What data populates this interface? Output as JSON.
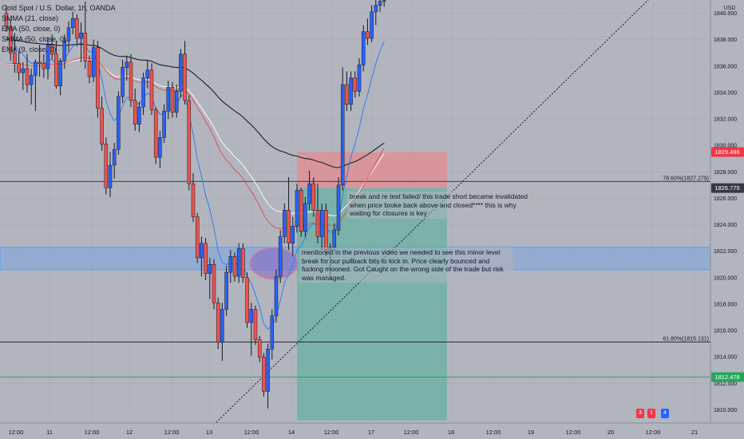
{
  "symbol": "Gold Spot / U.S. Dollar, 1h, OANDA",
  "indicators": [
    "SMMA (21, close)",
    "EMA (50, close, 0)",
    "SMMA (50, close, 0)",
    "EMA (9, close, 0)"
  ],
  "currency": "USD",
  "price_axis": {
    "ticks": [
      "1840.000",
      "1838.000",
      "1836.000",
      "1834.000",
      "1832.000",
      "1830.000",
      "1828.000",
      "1826.000",
      "1824.000",
      "1822.000",
      "1820.000",
      "1818.000",
      "1816.000",
      "1814.000",
      "1812.000",
      "1810.000"
    ],
    "badges": [
      {
        "label": "1829.496",
        "price": 1829.496,
        "color": "#f23645"
      },
      {
        "label": "1826.775",
        "price": 1826.775,
        "color": "#363a45"
      },
      {
        "label": "1812.478",
        "price": 1812.478,
        "color": "#26a65b"
      }
    ]
  },
  "time_axis": [
    "12:00",
    "11",
    "12:00",
    "12",
    "12:00",
    "13",
    "12:00",
    "14",
    "12:00",
    "17",
    "12:00",
    "18",
    "12:00",
    "19",
    "12:00",
    "20",
    "12:00",
    "21"
  ],
  "fib_levels": [
    {
      "label": "78.60%(1827.279)",
      "price": 1827.279
    },
    {
      "label": "61.80%(1815.131)",
      "price": 1815.131
    }
  ],
  "annotations": {
    "note1": "break and re test failed/ this trade short became invalidated when price broke back above and closed**** this is why waiting for closures is key",
    "note2": "mentioned in the previous video we needed to see this minor level break for our pullback bits to kick in. Price clearly bounced and fucking mooned. Got Caught on the wrong side of the trade but risk was managed."
  },
  "event_badges": [
    "3",
    "1",
    "4"
  ],
  "colors": {
    "bull": "#2962ff",
    "bear": "#ef5350",
    "support_zone": "#5b9cf6",
    "stop_zone": "#f77c80",
    "target_zone": "#4caf99",
    "green_line": "#26a65b"
  },
  "chart_data": {
    "type": "candlestick",
    "price_range": [
      1809,
      1841
    ],
    "candles_ohlc": [
      [
        1840.0,
        1840.6,
        1838.6,
        1839.0
      ],
      [
        1839.0,
        1839.5,
        1836.4,
        1837.0
      ],
      [
        1837.0,
        1838.5,
        1835.5,
        1836.2
      ],
      [
        1836.2,
        1837.1,
        1834.9,
        1835.5
      ],
      [
        1835.5,
        1836.3,
        1834.2,
        1835.8
      ],
      [
        1835.8,
        1836.9,
        1834.0,
        1834.6
      ],
      [
        1834.6,
        1835.8,
        1833.1,
        1835.3
      ],
      [
        1835.3,
        1836.5,
        1832.6,
        1836.3
      ],
      [
        1836.3,
        1837.6,
        1835.2,
        1836.2
      ],
      [
        1836.2,
        1836.9,
        1835.1,
        1835.8
      ],
      [
        1835.8,
        1838.2,
        1835.0,
        1837.6
      ],
      [
        1837.6,
        1838.4,
        1836.5,
        1836.9
      ],
      [
        1836.9,
        1837.9,
        1834.3,
        1834.5
      ],
      [
        1834.5,
        1836.6,
        1833.8,
        1836.4
      ],
      [
        1836.4,
        1838.4,
        1835.8,
        1837.9
      ],
      [
        1837.9,
        1839.4,
        1837.1,
        1838.9
      ],
      [
        1838.9,
        1840.1,
        1838.4,
        1839.6
      ],
      [
        1839.6,
        1839.9,
        1837.5,
        1838.1
      ],
      [
        1838.1,
        1839.3,
        1836.3,
        1838.5
      ],
      [
        1838.5,
        1840.9,
        1835.8,
        1836.4
      ],
      [
        1836.4,
        1836.8,
        1834.7,
        1835.2
      ],
      [
        1835.2,
        1838.0,
        1834.8,
        1837.4
      ],
      [
        1837.4,
        1837.9,
        1832.1,
        1832.8
      ],
      [
        1832.8,
        1833.7,
        1829.6,
        1830.1
      ],
      [
        1830.1,
        1830.6,
        1826.3,
        1826.8
      ],
      [
        1826.8,
        1829.5,
        1826.1,
        1828.5
      ],
      [
        1828.5,
        1830.2,
        1827.5,
        1829.7
      ],
      [
        1829.7,
        1834.1,
        1829.3,
        1833.7
      ],
      [
        1833.7,
        1836.5,
        1833.2,
        1835.9
      ],
      [
        1835.9,
        1836.8,
        1834.9,
        1836.3
      ],
      [
        1836.3,
        1836.9,
        1832.9,
        1833.4
      ],
      [
        1833.4,
        1834.3,
        1831.1,
        1831.6
      ],
      [
        1831.6,
        1833.3,
        1831.0,
        1832.9
      ],
      [
        1832.9,
        1835.5,
        1832.3,
        1835.1
      ],
      [
        1835.1,
        1836.4,
        1834.3,
        1835.7
      ],
      [
        1835.7,
        1836.2,
        1832.3,
        1832.7
      ],
      [
        1832.7,
        1832.9,
        1828.6,
        1829.1
      ],
      [
        1829.1,
        1831.1,
        1828.3,
        1830.6
      ],
      [
        1830.6,
        1833.1,
        1830.2,
        1832.6
      ],
      [
        1832.6,
        1834.9,
        1832.0,
        1834.4
      ],
      [
        1834.4,
        1834.8,
        1832.1,
        1832.5
      ],
      [
        1832.5,
        1834.6,
        1832.1,
        1834.1
      ],
      [
        1834.1,
        1837.3,
        1833.6,
        1836.9
      ],
      [
        1836.9,
        1837.9,
        1833.1,
        1833.4
      ],
      [
        1833.4,
        1833.8,
        1826.6,
        1827.1
      ],
      [
        1827.1,
        1827.9,
        1824.2,
        1824.6
      ],
      [
        1824.6,
        1824.9,
        1821.1,
        1821.5
      ],
      [
        1821.5,
        1823.1,
        1820.1,
        1822.6
      ],
      [
        1822.6,
        1823.0,
        1819.8,
        1820.3
      ],
      [
        1820.3,
        1821.5,
        1818.4,
        1821.0
      ],
      [
        1821.0,
        1821.4,
        1817.6,
        1818.1
      ],
      [
        1818.1,
        1818.5,
        1814.6,
        1815.1
      ],
      [
        1815.1,
        1818.1,
        1813.7,
        1817.6
      ],
      [
        1817.6,
        1820.9,
        1817.1,
        1820.4
      ],
      [
        1820.4,
        1822.1,
        1819.6,
        1821.6
      ],
      [
        1821.6,
        1821.9,
        1819.7,
        1820.1
      ],
      [
        1820.1,
        1822.6,
        1819.6,
        1822.2
      ],
      [
        1822.2,
        1822.6,
        1819.6,
        1820.0
      ],
      [
        1820.0,
        1820.4,
        1816.2,
        1816.6
      ],
      [
        1816.6,
        1818.1,
        1814.1,
        1817.6
      ],
      [
        1817.6,
        1817.9,
        1814.9,
        1815.3
      ],
      [
        1815.3,
        1815.6,
        1813.6,
        1814.0
      ],
      [
        1814.0,
        1814.3,
        1811.0,
        1811.4
      ],
      [
        1811.4,
        1815.0,
        1810.1,
        1814.6
      ],
      [
        1814.6,
        1817.6,
        1813.8,
        1817.1
      ],
      [
        1817.1,
        1820.6,
        1816.6,
        1820.1
      ],
      [
        1820.1,
        1823.6,
        1819.6,
        1823.1
      ],
      [
        1823.1,
        1825.6,
        1822.6,
        1825.1
      ],
      [
        1825.1,
        1827.6,
        1822.1,
        1822.6
      ],
      [
        1822.6,
        1824.6,
        1821.6,
        1823.9
      ],
      [
        1823.9,
        1827.1,
        1823.4,
        1826.6
      ],
      [
        1826.6,
        1826.8,
        1823.1,
        1823.5
      ],
      [
        1823.5,
        1826.1,
        1823.1,
        1825.6
      ],
      [
        1825.6,
        1828.1,
        1825.1,
        1827.1
      ],
      [
        1827.1,
        1827.6,
        1824.6,
        1825.1
      ],
      [
        1825.1,
        1827.1,
        1822.6,
        1823.1
      ],
      [
        1823.1,
        1825.6,
        1822.1,
        1825.1
      ],
      [
        1825.1,
        1825.6,
        1821.6,
        1822.1
      ],
      [
        1822.1,
        1822.6,
        1819.8,
        1822.3
      ],
      [
        1822.3,
        1824.1,
        1822.0,
        1823.6
      ],
      [
        1823.6,
        1827.6,
        1823.2,
        1827.0
      ],
      [
        1827.0,
        1835.9,
        1826.6,
        1834.6
      ],
      [
        1834.6,
        1835.6,
        1832.6,
        1833.1
      ],
      [
        1833.1,
        1835.6,
        1832.6,
        1835.1
      ],
      [
        1835.1,
        1835.6,
        1833.6,
        1834.1
      ],
      [
        1834.1,
        1836.6,
        1833.7,
        1836.1
      ],
      [
        1836.1,
        1839.1,
        1835.6,
        1838.6
      ],
      [
        1838.6,
        1839.6,
        1837.6,
        1838.1
      ],
      [
        1838.1,
        1840.6,
        1837.8,
        1840.1
      ],
      [
        1840.1,
        1841.0,
        1839.1,
        1840.6
      ],
      [
        1840.6,
        1841.0,
        1840.1,
        1840.9
      ],
      [
        1840.9,
        1841.0,
        1840.5,
        1840.95
      ]
    ],
    "trade_setup": {
      "entry": 1826.775,
      "stop": 1829.496,
      "target": 1809.2
    },
    "support_zone": [
      1820.6,
      1822.3
    ],
    "trend_line_from_price": 1809.0,
    "x_labels": [
      "12:00",
      "11",
      "12:00",
      "12",
      "12:00",
      "13",
      "12:00",
      "14",
      "12:00",
      "17",
      "12:00",
      "18",
      "12:00",
      "19",
      "12:00",
      "20",
      "12:00",
      "21"
    ]
  }
}
